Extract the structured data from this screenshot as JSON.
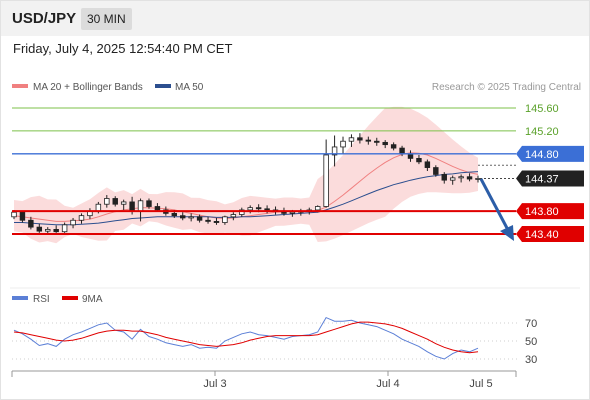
{
  "header": {
    "symbol": "USD/JPY",
    "timeframe": "30 MIN"
  },
  "datetime": "Friday, July 4, 2025 12:54:40 PM CET",
  "legend": {
    "ma20_label": "MA 20 + Bollinger Bands",
    "ma50_label": "MA 50",
    "credit": "Research © 2025 Trading Central"
  },
  "rsi_legend": {
    "rsi_label": "RSI",
    "ma_label": "9MA"
  },
  "colors": {
    "ma20": "#f08080",
    "ma50": "#2c4f8f",
    "band_fill": "#f9d0d0",
    "resistance": "#7cc14a",
    "pivot": "#3b6fd6",
    "support": "#e00000",
    "rsi": "#5b7fd6",
    "rsi_ma": "#e00000",
    "arrow": "#2c5ea8"
  },
  "levels": {
    "r2": "145.60",
    "r1": "145.20",
    "pivot": "144.80",
    "last": "144.37",
    "s1": "143.80",
    "s2": "143.40"
  },
  "x_labels": [
    "Jul 3",
    "Jul 4",
    "Jul 5"
  ],
  "rsi_labels": [
    "70",
    "50",
    "30"
  ],
  "chart_data": [
    {
      "type": "candlestick",
      "price_levels": {
        "resistance_2": 145.6,
        "resistance_1": 145.2,
        "pivot": 144.8,
        "last": 144.37,
        "support_1": 143.8,
        "support_2": 143.4
      },
      "ohlc": [
        [
          143.7,
          143.82,
          143.66,
          143.78
        ],
        [
          143.78,
          143.8,
          143.6,
          143.64
        ],
        [
          143.64,
          143.7,
          143.48,
          143.52
        ],
        [
          143.52,
          143.58,
          143.42,
          143.45
        ],
        [
          143.45,
          143.52,
          143.4,
          143.48
        ],
        [
          143.48,
          143.55,
          143.42,
          143.44
        ],
        [
          143.44,
          143.6,
          143.42,
          143.56
        ],
        [
          143.56,
          143.68,
          143.5,
          143.64
        ],
        [
          143.64,
          143.76,
          143.58,
          143.72
        ],
        [
          143.72,
          143.85,
          143.66,
          143.8
        ],
        [
          143.8,
          143.96,
          143.76,
          143.92
        ],
        [
          143.92,
          144.08,
          143.86,
          144.02
        ],
        [
          144.02,
          144.06,
          143.88,
          143.92
        ],
        [
          143.92,
          144.0,
          143.82,
          143.96
        ],
        [
          143.96,
          144.05,
          143.74,
          143.8
        ],
        [
          143.8,
          144.02,
          143.62,
          143.98
        ],
        [
          143.98,
          144.02,
          143.84,
          143.88
        ],
        [
          143.88,
          143.94,
          143.8,
          143.82
        ],
        [
          143.82,
          143.88,
          143.72,
          143.76
        ],
        [
          143.76,
          143.82,
          143.68,
          143.72
        ],
        [
          143.72,
          143.78,
          143.64,
          143.68
        ],
        [
          143.68,
          143.76,
          143.62,
          143.7
        ],
        [
          143.7,
          143.74,
          143.6,
          143.64
        ],
        [
          143.64,
          143.7,
          143.58,
          143.62
        ],
        [
          143.62,
          143.68,
          143.56,
          143.6
        ],
        [
          143.6,
          143.72,
          143.56,
          143.7
        ],
        [
          143.7,
          143.78,
          143.64,
          143.74
        ],
        [
          143.74,
          143.86,
          143.7,
          143.82
        ],
        [
          143.82,
          143.9,
          143.76,
          143.86
        ],
        [
          143.86,
          143.92,
          143.78,
          143.84
        ],
        [
          143.84,
          143.9,
          143.76,
          143.82
        ],
        [
          143.82,
          143.88,
          143.74,
          143.8
        ],
        [
          143.8,
          143.86,
          143.72,
          143.76
        ],
        [
          143.76,
          143.82,
          143.7,
          143.78
        ],
        [
          143.78,
          143.84,
          143.72,
          143.8
        ],
        [
          143.8,
          143.86,
          143.74,
          143.82
        ],
        [
          143.82,
          143.9,
          143.78,
          143.88
        ],
        [
          143.88,
          145.05,
          143.86,
          144.78
        ],
        [
          144.78,
          145.12,
          144.58,
          144.92
        ],
        [
          144.92,
          145.1,
          144.8,
          145.02
        ],
        [
          145.02,
          145.14,
          144.92,
          145.08
        ],
        [
          145.08,
          145.16,
          144.98,
          145.04
        ],
        [
          145.04,
          145.1,
          144.96,
          145.02
        ],
        [
          145.02,
          145.08,
          144.94,
          145.0
        ],
        [
          145.0,
          145.04,
          144.9,
          144.96
        ],
        [
          144.96,
          145.0,
          144.86,
          144.9
        ],
        [
          144.9,
          144.94,
          144.76,
          144.8
        ],
        [
          144.8,
          144.86,
          144.66,
          144.72
        ],
        [
          144.72,
          144.78,
          144.62,
          144.66
        ],
        [
          144.66,
          144.7,
          144.5,
          144.56
        ],
        [
          144.56,
          144.6,
          144.4,
          144.44
        ],
        [
          144.44,
          144.48,
          144.28,
          144.34
        ],
        [
          144.34,
          144.42,
          144.26,
          144.38
        ],
        [
          144.38,
          144.44,
          144.3,
          144.4
        ],
        [
          144.4,
          144.46,
          144.32,
          144.36
        ],
        [
          144.36,
          144.42,
          144.3,
          144.37
        ]
      ],
      "bollinger_ma20": [
        143.72,
        143.7,
        143.68,
        143.66,
        143.64,
        143.62,
        143.62,
        143.63,
        143.64,
        143.66,
        143.7,
        143.75,
        143.79,
        143.82,
        143.84,
        143.86,
        143.86,
        143.85,
        143.84,
        143.82,
        143.79,
        143.76,
        143.73,
        143.7,
        143.68,
        143.67,
        143.68,
        143.7,
        143.72,
        143.74,
        143.76,
        143.78,
        143.79,
        143.8,
        143.8,
        143.8,
        143.81,
        143.87,
        143.97,
        144.08,
        144.2,
        144.32,
        144.44,
        144.55,
        144.65,
        144.73,
        144.79,
        144.82,
        144.81,
        144.78,
        144.72,
        144.65,
        144.58,
        144.52,
        144.47,
        144.44
      ],
      "ma50": [
        143.6,
        143.6,
        143.59,
        143.58,
        143.57,
        143.56,
        143.56,
        143.56,
        143.57,
        143.58,
        143.59,
        143.61,
        143.63,
        143.65,
        143.67,
        143.68,
        143.69,
        143.7,
        143.7,
        143.7,
        143.7,
        143.7,
        143.7,
        143.7,
        143.69,
        143.69,
        143.69,
        143.7,
        143.7,
        143.71,
        143.72,
        143.73,
        143.74,
        143.75,
        143.76,
        143.77,
        143.78,
        143.82,
        143.87,
        143.92,
        143.98,
        144.04,
        144.1,
        144.16,
        144.21,
        144.26,
        144.3,
        144.34,
        144.37,
        144.4,
        144.42,
        144.44,
        144.45,
        144.47,
        144.48,
        144.49
      ]
    },
    {
      "type": "line",
      "title": "RSI",
      "ylim": [
        20,
        80
      ],
      "yticks": [
        70,
        50,
        30
      ],
      "series": [
        {
          "name": "RSI",
          "values": [
            62,
            58,
            52,
            45,
            47,
            44,
            52,
            57,
            60,
            64,
            68,
            70,
            62,
            60,
            52,
            63,
            55,
            52,
            48,
            46,
            44,
            46,
            42,
            43,
            42,
            50,
            54,
            58,
            60,
            57,
            56,
            54,
            52,
            55,
            56,
            57,
            60,
            76,
            72,
            72,
            73,
            70,
            68,
            66,
            62,
            58,
            52,
            48,
            44,
            38,
            33,
            30,
            36,
            40,
            38,
            42
          ]
        },
        {
          "name": "9MA",
          "values": [
            60,
            59,
            57,
            55,
            53,
            51,
            50,
            51,
            53,
            56,
            59,
            61,
            62,
            62,
            61,
            61,
            59,
            57,
            54,
            52,
            50,
            48,
            46,
            45,
            44,
            45,
            46,
            48,
            51,
            53,
            55,
            56,
            56,
            56,
            56,
            56,
            57,
            60,
            63,
            66,
            69,
            71,
            71,
            70,
            69,
            67,
            64,
            60,
            56,
            52,
            47,
            43,
            40,
            38,
            37,
            38
          ]
        }
      ]
    }
  ]
}
